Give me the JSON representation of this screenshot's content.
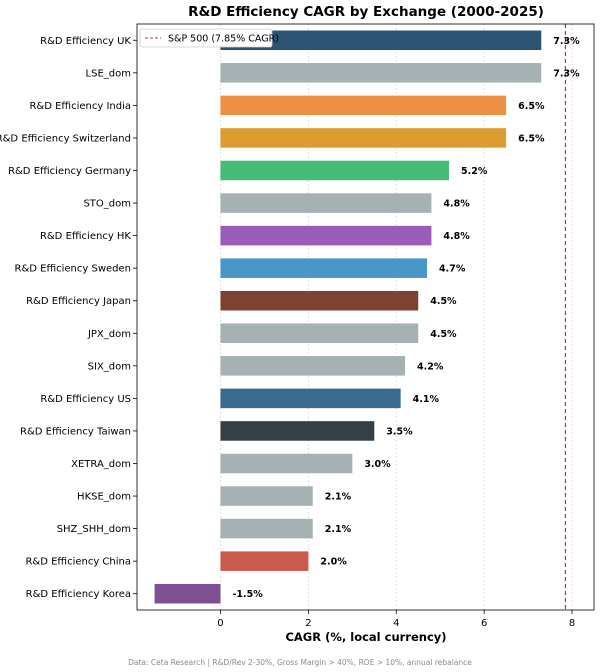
{
  "chart_data": {
    "type": "bar",
    "orientation": "horizontal",
    "title": "R&D Efficiency CAGR by Exchange (2000-2025)",
    "xlabel": "CAGR (%, local currency)",
    "ylabel": "",
    "xlim": [
      -1.9,
      8.5
    ],
    "x_ticks": [
      0,
      2,
      4,
      6,
      8
    ],
    "grid": "vertical-dotted",
    "legend_position": "top-left",
    "reference_line": {
      "label": "S&P 500 (7.85% CAGR)",
      "value": 7.85,
      "color": "#d62728"
    },
    "bars": [
      {
        "label": "R&D Efficiency UK",
        "value": 7.3,
        "value_label": "7.3%",
        "color": "#2c5574"
      },
      {
        "label": "LSE_dom",
        "value": 7.3,
        "value_label": "7.3%",
        "color": "#a5b1b2"
      },
      {
        "label": "R&D Efficiency India",
        "value": 6.5,
        "value_label": "6.5%",
        "color": "#ec9141"
      },
      {
        "label": "R&D Efficiency Switzerland",
        "value": 6.5,
        "value_label": "6.5%",
        "color": "#dc9c30"
      },
      {
        "label": "R&D Efficiency Germany",
        "value": 5.2,
        "value_label": "5.2%",
        "color": "#45bb77"
      },
      {
        "label": "STO_dom",
        "value": 4.8,
        "value_label": "4.8%",
        "color": "#a5b1b2"
      },
      {
        "label": "R&D Efficiency HK",
        "value": 4.8,
        "value_label": "4.8%",
        "color": "#9a5cbb"
      },
      {
        "label": "R&D Efficiency Sweden",
        "value": 4.7,
        "value_label": "4.7%",
        "color": "#4a96cb"
      },
      {
        "label": "R&D Efficiency Japan",
        "value": 4.5,
        "value_label": "4.5%",
        "color": "#7d4332"
      },
      {
        "label": "JPX_dom",
        "value": 4.5,
        "value_label": "4.5%",
        "color": "#a5b1b2"
      },
      {
        "label": "SIX_dom",
        "value": 4.2,
        "value_label": "4.2%",
        "color": "#a5b1b2"
      },
      {
        "label": "R&D Efficiency US",
        "value": 4.1,
        "value_label": "4.1%",
        "color": "#3a6a8c"
      },
      {
        "label": "R&D Efficiency Taiwan",
        "value": 3.5,
        "value_label": "3.5%",
        "color": "#363f47"
      },
      {
        "label": "XETRA_dom",
        "value": 3.0,
        "value_label": "3.0%",
        "color": "#a5b1b2"
      },
      {
        "label": "HKSE_dom",
        "value": 2.1,
        "value_label": "2.1%",
        "color": "#a5b1b2"
      },
      {
        "label": "SHZ_SHH_dom",
        "value": 2.1,
        "value_label": "2.1%",
        "color": "#a5b1b2"
      },
      {
        "label": "R&D Efficiency China",
        "value": 2.0,
        "value_label": "2.0%",
        "color": "#cc5a4c"
      },
      {
        "label": "R&D Efficiency Korea",
        "value": -1.5,
        "value_label": "-1.5%",
        "color": "#7f4f94"
      }
    ],
    "footer": "Data: Ceta Research | R&D/Rev 2-30%, Gross Margin > 40%, ROE > 10%, annual rebalance"
  }
}
